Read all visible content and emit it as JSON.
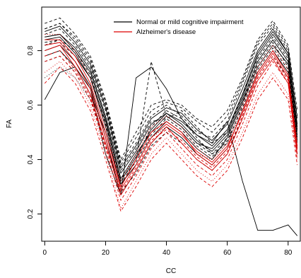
{
  "chart_data": {
    "type": "line",
    "xlabel": "CC",
    "ylabel": "FA",
    "xlim": [
      -1,
      84
    ],
    "ylim": [
      0.1,
      0.96
    ],
    "x_ticks": [
      0,
      20,
      40,
      60,
      80
    ],
    "y_ticks": [
      0.2,
      0.4,
      0.6,
      0.8
    ],
    "x": [
      0,
      5,
      10,
      15,
      20,
      25,
      30,
      35,
      40,
      45,
      50,
      55,
      60,
      65,
      70,
      75,
      80,
      83
    ],
    "legend": {
      "position": "top-center",
      "entries": [
        {
          "label": "Normal or mild cognitive impairment",
          "color": "#000000"
        },
        {
          "label": "Alzheimer's disease",
          "color": "#dd0000"
        }
      ]
    },
    "series": [
      {
        "name": "Normal or mild cognitive impairment",
        "color": "#000000",
        "curves": [
          {
            "y": [
              0.85,
              0.86,
              0.8,
              0.72,
              0.55,
              0.33,
              0.42,
              0.5,
              0.56,
              0.52,
              0.46,
              0.44,
              0.5,
              0.63,
              0.78,
              0.86,
              0.78,
              0.52
            ],
            "style": "solid"
          },
          {
            "y": [
              0.82,
              0.84,
              0.78,
              0.7,
              0.52,
              0.3,
              0.4,
              0.52,
              0.58,
              0.55,
              0.48,
              0.42,
              0.46,
              0.6,
              0.75,
              0.83,
              0.74,
              0.45
            ],
            "style": "dashed"
          },
          {
            "y": [
              0.88,
              0.9,
              0.84,
              0.76,
              0.6,
              0.38,
              0.46,
              0.56,
              0.6,
              0.56,
              0.5,
              0.48,
              0.54,
              0.68,
              0.82,
              0.89,
              0.8,
              0.55
            ],
            "style": "dashed"
          },
          {
            "y": [
              0.8,
              0.82,
              0.76,
              0.67,
              0.48,
              0.27,
              0.36,
              0.46,
              0.52,
              0.48,
              0.42,
              0.38,
              0.44,
              0.58,
              0.72,
              0.8,
              0.72,
              0.44
            ],
            "style": "solid"
          },
          {
            "y": [
              0.86,
              0.88,
              0.82,
              0.74,
              0.58,
              0.36,
              0.44,
              0.54,
              0.55,
              0.58,
              0.52,
              0.46,
              0.5,
              0.64,
              0.77,
              0.85,
              0.77,
              0.5
            ],
            "style": "dashed"
          },
          {
            "y": [
              0.78,
              0.8,
              0.74,
              0.64,
              0.5,
              0.31,
              0.38,
              0.48,
              0.54,
              0.5,
              0.44,
              0.4,
              0.48,
              0.61,
              0.74,
              0.82,
              0.75,
              0.47
            ],
            "style": "solid"
          },
          {
            "y": [
              0.9,
              0.92,
              0.86,
              0.78,
              0.62,
              0.4,
              0.5,
              0.6,
              0.62,
              0.6,
              0.55,
              0.52,
              0.58,
              0.7,
              0.84,
              0.91,
              0.82,
              0.58
            ],
            "style": "dashed"
          },
          {
            "y": [
              0.84,
              0.85,
              0.79,
              0.7,
              0.54,
              0.32,
              0.41,
              0.51,
              0.57,
              0.53,
              0.47,
              0.43,
              0.49,
              0.62,
              0.76,
              0.84,
              0.76,
              0.49
            ],
            "style": "solid"
          },
          {
            "y": [
              0.76,
              0.78,
              0.72,
              0.62,
              0.46,
              0.28,
              0.35,
              0.45,
              0.5,
              0.46,
              0.4,
              0.36,
              0.42,
              0.56,
              0.7,
              0.78,
              0.7,
              0.42
            ],
            "style": "dashed"
          },
          {
            "y": [
              0.87,
              0.89,
              0.83,
              0.75,
              0.59,
              0.37,
              0.45,
              0.55,
              0.59,
              0.57,
              0.51,
              0.47,
              0.53,
              0.66,
              0.8,
              0.88,
              0.79,
              0.53
            ],
            "style": "solid"
          },
          {
            "y": [
              0.83,
              0.84,
              0.8,
              0.71,
              0.53,
              0.33,
              0.39,
              0.49,
              0.55,
              0.51,
              0.45,
              0.41,
              0.47,
              0.59,
              0.73,
              0.81,
              0.73,
              0.46
            ],
            "style": "dashed"
          },
          {
            "y": [
              0.85,
              0.86,
              0.81,
              0.73,
              0.56,
              0.35,
              0.43,
              0.53,
              0.57,
              0.54,
              0.49,
              0.45,
              0.51,
              0.64,
              0.79,
              0.87,
              0.79,
              0.51
            ],
            "style": "solid"
          },
          {
            "y": [
              0.7,
              0.74,
              0.7,
              0.62,
              0.5,
              0.3,
              0.4,
              0.48,
              0.52,
              0.48,
              0.42,
              0.4,
              0.46,
              0.58,
              0.72,
              0.8,
              0.72,
              0.45
            ],
            "style": "dotted"
          },
          {
            "y": [
              0.62,
              0.72,
              0.74,
              0.66,
              0.42,
              0.27,
              0.7,
              0.74,
              0.66,
              0.55,
              0.49,
              0.46,
              0.54,
              0.32,
              0.14,
              0.14,
              0.16,
              0.12
            ],
            "style": "solid"
          },
          {
            "y": [
              0.82,
              0.83,
              0.78,
              0.7,
              0.52,
              0.31,
              0.4,
              0.76,
              0.56,
              0.52,
              0.46,
              0.42,
              0.48,
              0.61,
              0.76,
              0.84,
              0.76,
              0.48
            ],
            "style": "dashed"
          },
          {
            "y": [
              0.88,
              0.9,
              0.85,
              0.77,
              0.61,
              0.39,
              0.48,
              0.58,
              0.61,
              0.59,
              0.54,
              0.5,
              0.56,
              0.69,
              0.83,
              0.9,
              0.81,
              0.56
            ],
            "style": "dashed"
          }
        ]
      },
      {
        "name": "Alzheimer's disease",
        "color": "#dd0000",
        "curves": [
          {
            "y": [
              0.8,
              0.82,
              0.74,
              0.64,
              0.46,
              0.27,
              0.36,
              0.46,
              0.52,
              0.46,
              0.4,
              0.36,
              0.42,
              0.55,
              0.69,
              0.77,
              0.68,
              0.42
            ],
            "style": "solid"
          },
          {
            "y": [
              0.76,
              0.78,
              0.72,
              0.62,
              0.44,
              0.25,
              0.34,
              0.44,
              0.5,
              0.44,
              0.38,
              0.34,
              0.4,
              0.53,
              0.67,
              0.76,
              0.68,
              0.4
            ],
            "style": "dashed"
          },
          {
            "y": [
              0.84,
              0.84,
              0.78,
              0.68,
              0.5,
              0.3,
              0.4,
              0.5,
              0.54,
              0.5,
              0.42,
              0.38,
              0.44,
              0.58,
              0.72,
              0.8,
              0.71,
              0.45
            ],
            "style": "solid"
          },
          {
            "y": [
              0.72,
              0.76,
              0.7,
              0.6,
              0.42,
              0.22,
              0.32,
              0.42,
              0.48,
              0.42,
              0.36,
              0.32,
              0.38,
              0.5,
              0.64,
              0.72,
              0.64,
              0.4
            ],
            "style": "dotted"
          },
          {
            "y": [
              0.78,
              0.8,
              0.73,
              0.63,
              0.45,
              0.28,
              0.37,
              0.47,
              0.51,
              0.47,
              0.41,
              0.37,
              0.43,
              0.56,
              0.7,
              0.78,
              0.69,
              0.43
            ],
            "style": "dashed"
          },
          {
            "y": [
              0.82,
              0.83,
              0.76,
              0.66,
              0.48,
              0.29,
              0.38,
              0.48,
              0.53,
              0.49,
              0.43,
              0.39,
              0.45,
              0.57,
              0.71,
              0.79,
              0.7,
              0.44
            ],
            "style": "solid"
          },
          {
            "y": [
              0.68,
              0.74,
              0.68,
              0.58,
              0.4,
              0.21,
              0.3,
              0.4,
              0.46,
              0.4,
              0.34,
              0.3,
              0.36,
              0.48,
              0.62,
              0.7,
              0.62,
              0.38
            ],
            "style": "dashed"
          },
          {
            "y": [
              0.86,
              0.86,
              0.8,
              0.7,
              0.52,
              0.32,
              0.42,
              0.52,
              0.56,
              0.52,
              0.44,
              0.4,
              0.46,
              0.6,
              0.74,
              0.82,
              0.73,
              0.47
            ],
            "style": "dotted"
          }
        ]
      }
    ]
  }
}
